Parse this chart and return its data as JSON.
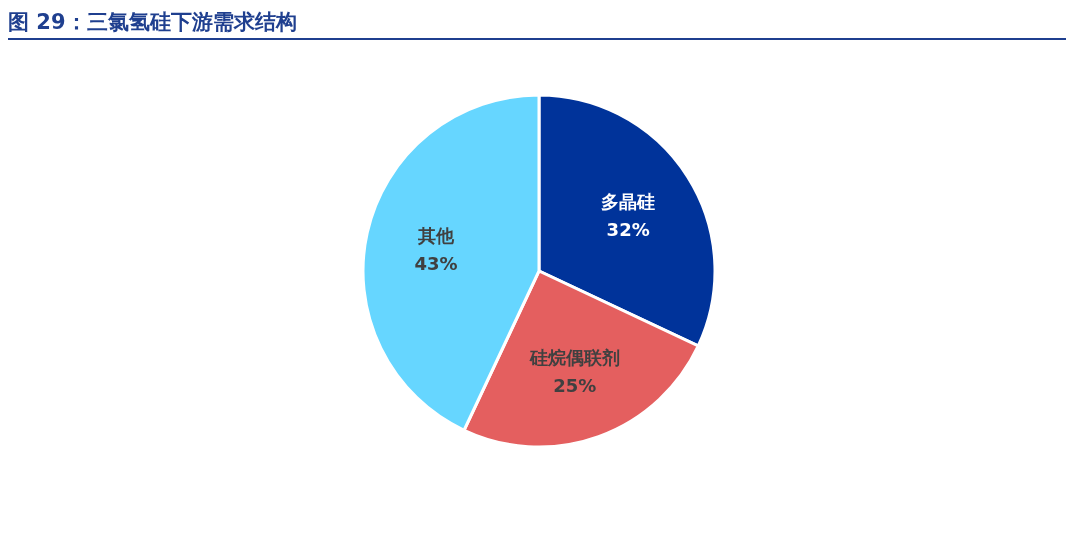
{
  "chart_data": {
    "type": "pie",
    "title": "图 29：三氯氢硅下游需求结构",
    "categories": [
      "多晶硅",
      "硅烷偶联剂",
      "其他"
    ],
    "values": [
      32,
      25,
      43
    ],
    "value_labels": [
      "32%",
      "25%",
      "43%"
    ],
    "colors": [
      "#00339a",
      "#e45f5f",
      "#66d6ff"
    ],
    "legend": false
  }
}
